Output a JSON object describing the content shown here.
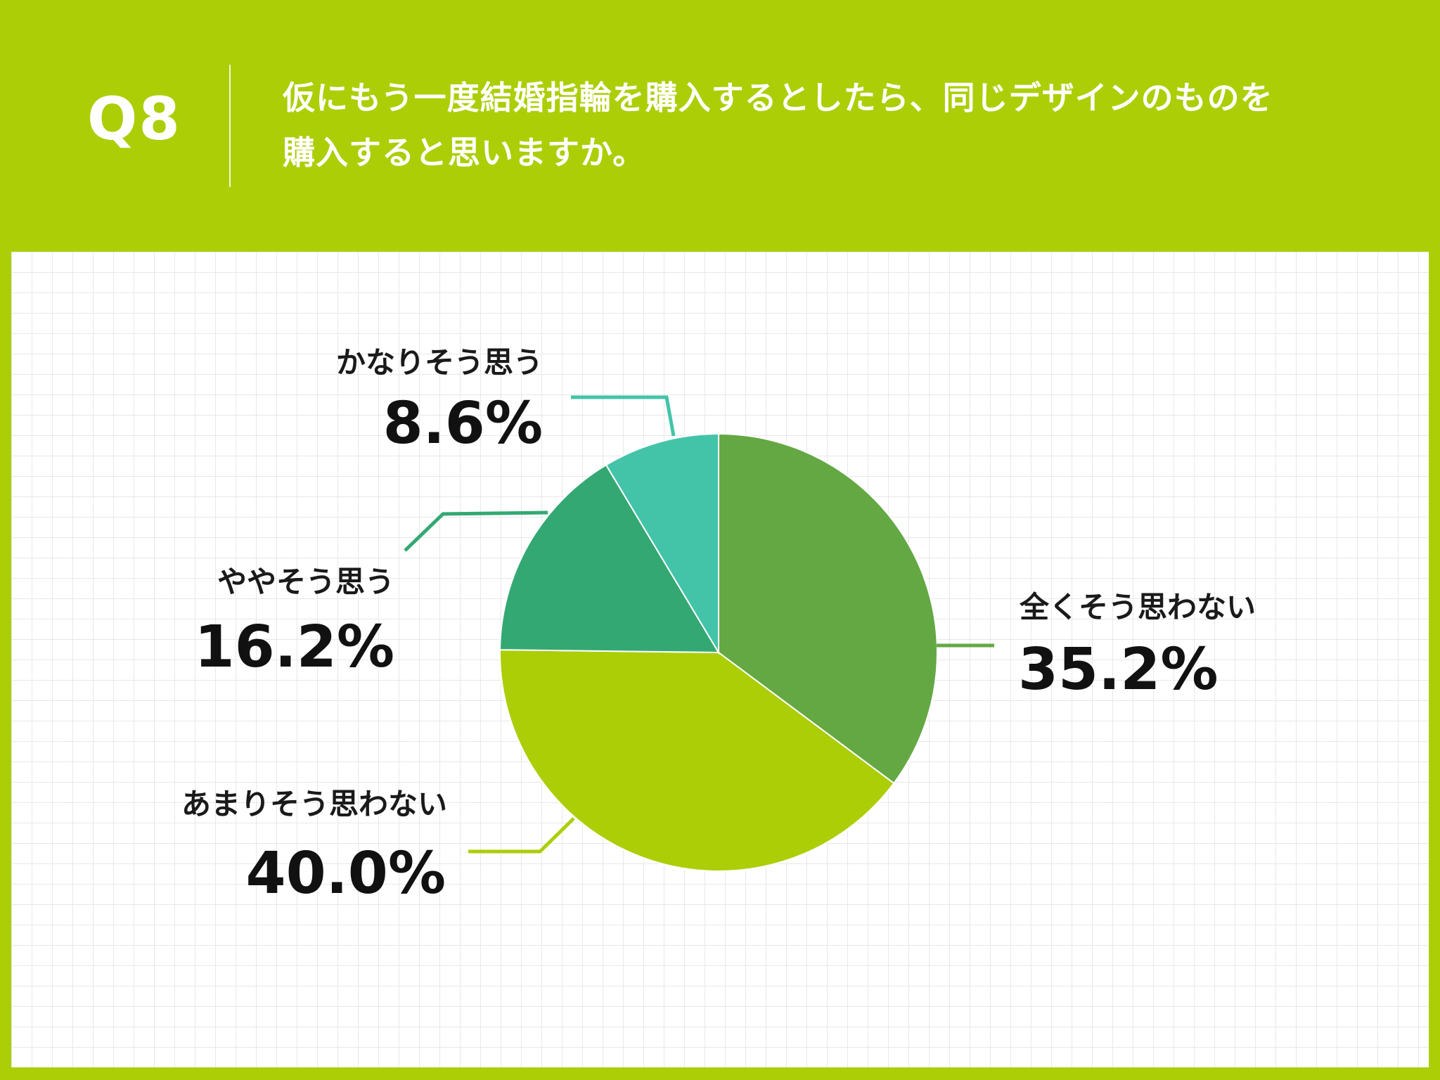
{
  "header": {
    "question_number": "Q8",
    "question_line1": "仮にもう一度結婚指輪を購入するとしたら、同じデザインのものを",
    "question_line2": "購入すると思いますか。"
  },
  "chart_data": {
    "type": "pie",
    "start": "top",
    "direction": "clockwise",
    "slices": [
      {
        "label": "全くそう思わない",
        "value": 35.2,
        "display": "35.2%",
        "color": "#64a844"
      },
      {
        "label": "あまりそう思わない",
        "value": 40.0,
        "display": "40.0%",
        "color": "#abce06"
      },
      {
        "label": "ややそう思う",
        "value": 16.2,
        "display": "16.2%",
        "color": "#34a873"
      },
      {
        "label": "かなりそう思う",
        "value": 8.6,
        "display": "8.6%",
        "color": "#43c4a8"
      }
    ]
  }
}
